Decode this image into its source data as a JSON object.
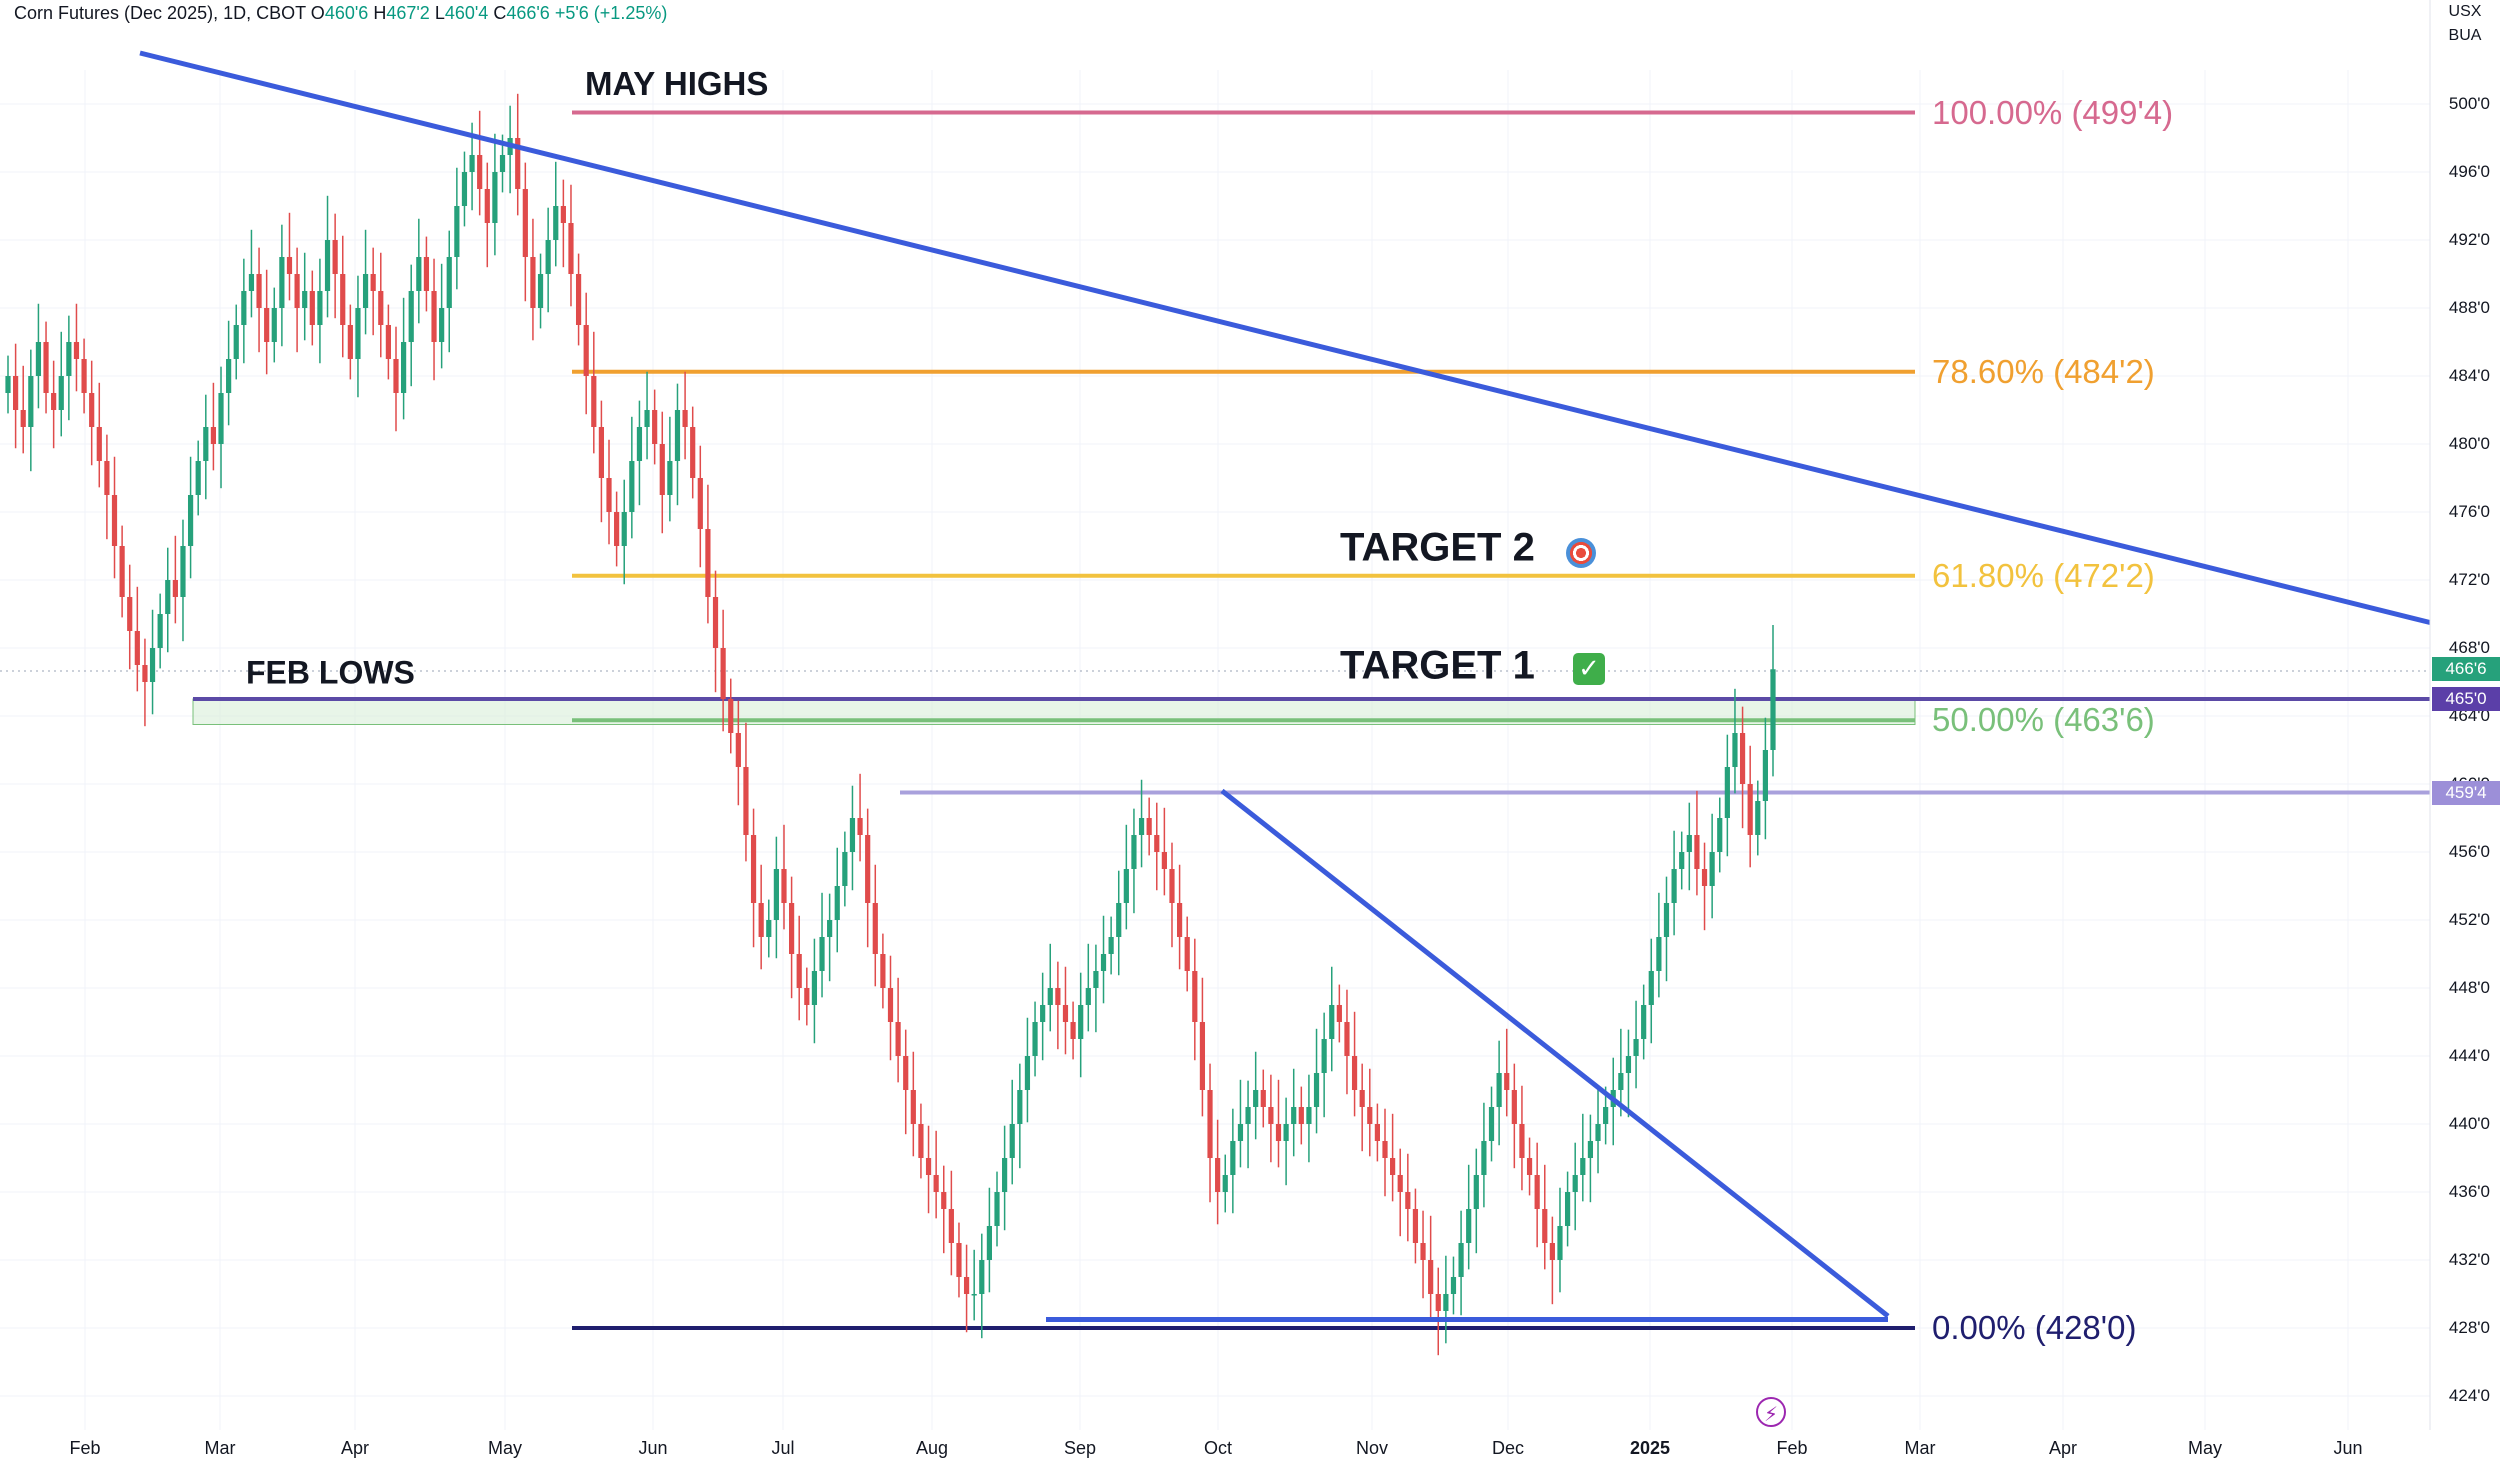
{
  "header": {
    "symbol_text": "Corn Futures (Dec 2025), 1D, CBOT",
    "o_label": "O",
    "o_value": "460'6",
    "h_label": "H",
    "h_value": "467'2",
    "l_label": "L",
    "l_value": "460'4",
    "c_label": "C",
    "c_value": "466'6",
    "change": "+5'6 (+1.25%)"
  },
  "units": {
    "currency": "USX",
    "unit": "BUA"
  },
  "colors": {
    "up": "#26a17b",
    "down": "#e04b4b",
    "trend": "#3b5bdb",
    "fib100": "#d6698f",
    "fib786": "#f0a030",
    "fib618": "#f2c23e",
    "fib50": "#79c07a",
    "fib0": "#1f1e6e",
    "support": "#5b4aa6",
    "resistance": "#a9a1dc"
  },
  "chart_data": {
    "type": "candlestick",
    "ylim": [
      422,
      502
    ],
    "y_ticks": [
      "424'0",
      "428'0",
      "432'0",
      "436'0",
      "440'0",
      "444'0",
      "448'0",
      "452'0",
      "456'0",
      "460'0",
      "464'0",
      "468'0",
      "472'0",
      "476'0",
      "480'0",
      "484'0",
      "488'0",
      "492'0",
      "496'0",
      "500'0"
    ],
    "x_ticks": [
      "Feb",
      "Mar",
      "Apr",
      "May",
      "Jun",
      "Jul",
      "Aug",
      "Sep",
      "Oct",
      "Nov",
      "Dec",
      "2025",
      "Feb",
      "Mar",
      "Apr",
      "May",
      "Jun"
    ],
    "x_ticks_bold": [
      "2025"
    ],
    "price_tags": [
      {
        "label": "466'6",
        "price": 466.75,
        "color": "#26a17b"
      },
      {
        "label": "465'0",
        "price": 465.0,
        "color": "#5b3fa8"
      },
      {
        "label": "459'4",
        "price": 459.5,
        "color": "#9c8fd8"
      }
    ],
    "fib_levels": [
      {
        "label": "100.00% (499'4)",
        "price": 499.5,
        "color": "#d6698f"
      },
      {
        "label": "78.60% (484'2)",
        "price": 484.25,
        "color": "#f0a030"
      },
      {
        "label": "61.80% (472'2)",
        "price": 472.25,
        "color": "#f2c23e"
      },
      {
        "label": "50.00% (463'6)",
        "price": 463.75,
        "color": "#79c07a"
      },
      {
        "label": "0.00% (428'0)",
        "price": 428.0,
        "color": "#1f1e6e"
      }
    ],
    "annotations": [
      {
        "key": "may_highs",
        "text": "MAY HIGHS"
      },
      {
        "key": "feb_lows",
        "text": "FEB LOWS"
      },
      {
        "key": "target2",
        "text": "TARGET 2"
      },
      {
        "key": "target1",
        "text": "TARGET 1"
      }
    ],
    "lines": {
      "feb_lows_support": 465.0,
      "resistance_459": 459.5,
      "fib_zero": 428.0,
      "triangle_base": 428.5
    },
    "closes": [
      484,
      482,
      481,
      484,
      486,
      483,
      482,
      484,
      486,
      485,
      483,
      481,
      479,
      477,
      474,
      471,
      469,
      467,
      466,
      468,
      470,
      472,
      471,
      474,
      477,
      479,
      481,
      480,
      483,
      485,
      487,
      489,
      490,
      488,
      486,
      488,
      491,
      490,
      488,
      489,
      487,
      489,
      492,
      490,
      487,
      485,
      488,
      490,
      489,
      487,
      485,
      483,
      486,
      489,
      491,
      489,
      486,
      488,
      491,
      494,
      496,
      497,
      495,
      493,
      496,
      497,
      498,
      495,
      491,
      488,
      490,
      492,
      494,
      493,
      490,
      487,
      484,
      481,
      478,
      476,
      474,
      476,
      479,
      481,
      482,
      480,
      477,
      479,
      482,
      481,
      478,
      475,
      471,
      468,
      465,
      463,
      461,
      457,
      453,
      451,
      452,
      455,
      453,
      450,
      448,
      447,
      449,
      451,
      452,
      454,
      456,
      458,
      457,
      453,
      450,
      448,
      446,
      444,
      442,
      440,
      438,
      437,
      436,
      435,
      433,
      431,
      430,
      430,
      432,
      434,
      436,
      438,
      440,
      442,
      444,
      446,
      447,
      448,
      447,
      446,
      445,
      447,
      448,
      449,
      450,
      451,
      453,
      455,
      457,
      458,
      457,
      456,
      455,
      453,
      451,
      449,
      446,
      442,
      438,
      436,
      437,
      439,
      440,
      441,
      442,
      441,
      440,
      439,
      440,
      441,
      440,
      441,
      443,
      445,
      447,
      446,
      444,
      442,
      441,
      440,
      439,
      438,
      437,
      436,
      435,
      433,
      432,
      430,
      429,
      430,
      431,
      433,
      435,
      437,
      439,
      441,
      443,
      442,
      440,
      438,
      437,
      435,
      433,
      432,
      434,
      436,
      437,
      438,
      439,
      440,
      441,
      442,
      443,
      444,
      445,
      447,
      449,
      451,
      453,
      455,
      456,
      457,
      455,
      454,
      456,
      458,
      461,
      463,
      460,
      457,
      459,
      462,
      466.75
    ]
  }
}
